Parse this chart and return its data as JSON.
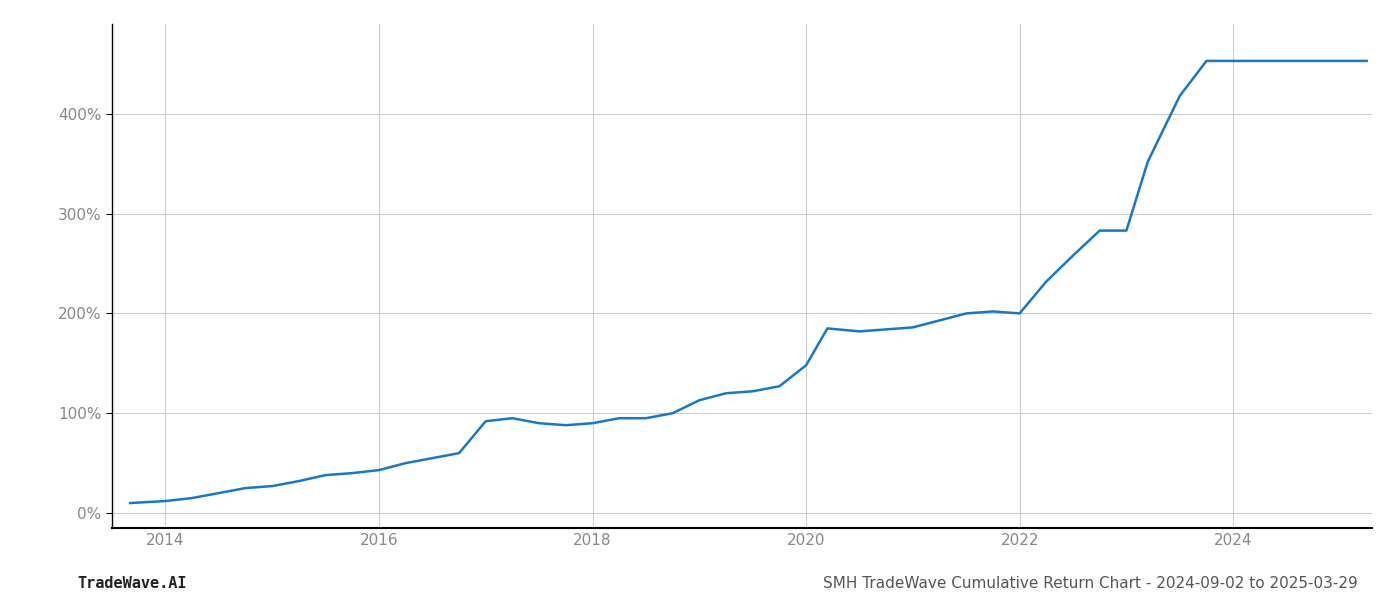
{
  "title": "SMH TradeWave Cumulative Return Chart - 2024-09-02 to 2025-03-29",
  "watermark": "TradeWave.AI",
  "line_color": "#1a78c2",
  "line_width": 1.8,
  "background_color": "#ffffff",
  "grid_color": "#cccccc",
  "x_years": [
    2013.67,
    2014.0,
    2014.25,
    2014.5,
    2014.75,
    2015.0,
    2015.25,
    2015.5,
    2015.75,
    2016.0,
    2016.25,
    2016.5,
    2016.75,
    2017.0,
    2017.25,
    2017.5,
    2017.75,
    2018.0,
    2018.25,
    2018.5,
    2018.75,
    2019.0,
    2019.25,
    2019.5,
    2019.75,
    2020.0,
    2020.2,
    2020.5,
    2020.75,
    2021.0,
    2021.25,
    2021.5,
    2021.75,
    2022.0,
    2022.25,
    2022.5,
    2022.75,
    2023.0,
    2023.2,
    2023.5,
    2023.75,
    2024.0,
    2024.25,
    2024.5,
    2024.75,
    2025.0,
    2025.25
  ],
  "y_values": [
    10,
    12,
    15,
    20,
    25,
    27,
    32,
    38,
    40,
    43,
    50,
    55,
    60,
    92,
    95,
    90,
    88,
    90,
    95,
    95,
    100,
    113,
    120,
    122,
    127,
    148,
    185,
    182,
    184,
    186,
    193,
    200,
    202,
    200,
    232,
    258,
    283,
    283,
    352,
    418,
    453,
    453,
    453,
    453,
    453,
    453,
    453
  ],
  "xlim": [
    2013.5,
    2025.3
  ],
  "ylim": [
    -15,
    490
  ],
  "yticks": [
    0,
    100,
    200,
    300,
    400
  ],
  "xticks": [
    2014,
    2016,
    2018,
    2020,
    2022,
    2024
  ],
  "title_fontsize": 11,
  "watermark_fontsize": 11,
  "tick_fontsize": 11,
  "spine_color": "#000000",
  "tick_color": "#888888",
  "label_color": "#888888"
}
